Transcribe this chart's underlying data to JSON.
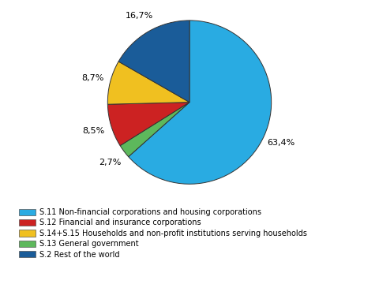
{
  "pie_values": [
    63.4,
    2.7,
    8.5,
    8.7,
    16.7
  ],
  "pie_colors": [
    "#29ABE2",
    "#5DB85C",
    "#CC2222",
    "#F0C020",
    "#1A5C99"
  ],
  "pie_labels": [
    "63,4%",
    "2,7%",
    "8,5%",
    "8,7%",
    "16,7%"
  ],
  "legend_labels": [
    "S.11 Non-financial corporations and housing corporations",
    "S.12 Financial and insurance corporations",
    "S.14+S.15 Households and non-profit institutions serving households",
    "S.13 General government",
    "S.2 Rest of the world"
  ],
  "legend_colors": [
    "#29ABE2",
    "#CC2222",
    "#F0C020",
    "#5DB85C",
    "#1A5C99"
  ],
  "bg_color": "#FFFFFF",
  "label_fontsize": 8,
  "legend_fontsize": 7
}
